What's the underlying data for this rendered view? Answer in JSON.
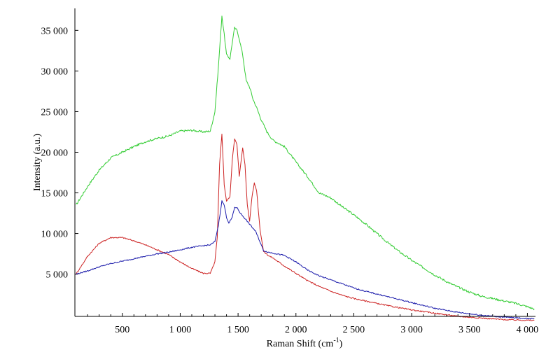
{
  "chart_data": {
    "type": "line",
    "title": "",
    "xlabel": "Raman Shift (cm-1)",
    "xlabel_main": "Raman Shift (cm",
    "xlabel_sup": "-1",
    "xlabel_close": ")",
    "ylabel": "Intensity (a.u.)",
    "xlim": [
      90,
      4070
    ],
    "ylim": [
      -200,
      37700
    ],
    "grid": false,
    "xticks": [
      {
        "value": 500,
        "label": "500"
      },
      {
        "value": 1000,
        "label": "1 000"
      },
      {
        "value": 1500,
        "label": "1 500"
      },
      {
        "value": 2000,
        "label": "2 000"
      },
      {
        "value": 2500,
        "label": "2 500"
      },
      {
        "value": 3000,
        "label": "3 000"
      },
      {
        "value": 3500,
        "label": "3 500"
      },
      {
        "value": 4000,
        "label": "4 000"
      }
    ],
    "yticks": [
      {
        "value": 5000,
        "label": "5 000"
      },
      {
        "value": 10000,
        "label": "10 000"
      },
      {
        "value": 15000,
        "label": "15 000"
      },
      {
        "value": 20000,
        "label": "20 000"
      },
      {
        "value": 25000,
        "label": "25 000"
      },
      {
        "value": 30000,
        "label": "30 000"
      },
      {
        "value": 35000,
        "label": "35 000"
      }
    ],
    "series": [
      {
        "color": "#33cc33",
        "x": [
          100,
          200,
          300,
          400,
          500,
          600,
          700,
          800,
          900,
          1000,
          1100,
          1200,
          1260,
          1300,
          1330,
          1360,
          1380,
          1400,
          1430,
          1450,
          1470,
          1490,
          1510,
          1540,
          1570,
          1600,
          1630,
          1660,
          1700,
          1750,
          1800,
          1900,
          2000,
          2100,
          2200,
          2300,
          2400,
          2500,
          2600,
          2700,
          2800,
          2900,
          3000,
          3100,
          3200,
          3300,
          3400,
          3500,
          3600,
          3700,
          3800,
          3900,
          4000,
          4060
        ],
        "y": [
          13500,
          15800,
          17800,
          19300,
          20000,
          20700,
          21300,
          21700,
          22000,
          22600,
          22700,
          22500,
          22600,
          25000,
          30500,
          36800,
          34500,
          32000,
          31500,
          33500,
          35300,
          35000,
          34000,
          32000,
          28800,
          28000,
          26500,
          25500,
          24000,
          22500,
          21500,
          20700,
          18800,
          17000,
          15000,
          14400,
          13300,
          12300,
          11200,
          10000,
          8800,
          7700,
          6700,
          5800,
          4900,
          4100,
          3400,
          2800,
          2300,
          2000,
          1700,
          1400,
          1000,
          700
        ]
      },
      {
        "color": "#cc2222",
        "x": [
          100,
          200,
          300,
          400,
          500,
          600,
          700,
          800,
          900,
          1000,
          1100,
          1200,
          1260,
          1300,
          1320,
          1340,
          1360,
          1380,
          1400,
          1430,
          1450,
          1470,
          1490,
          1510,
          1540,
          1560,
          1580,
          1600,
          1620,
          1640,
          1660,
          1690,
          1720,
          1760,
          1800,
          1900,
          2000,
          2100,
          2200,
          2300,
          2400,
          2500,
          2600,
          2800,
          3000,
          3200,
          3400,
          3600,
          3800,
          4060
        ],
        "y": [
          5000,
          7200,
          8800,
          9500,
          9500,
          9100,
          8600,
          8000,
          7400,
          6500,
          5700,
          5100,
          5100,
          6500,
          9500,
          18500,
          22300,
          16000,
          14000,
          14500,
          19000,
          21700,
          21000,
          17000,
          20500,
          18500,
          13500,
          11500,
          14500,
          16200,
          15300,
          10500,
          7800,
          7300,
          7000,
          6000,
          5100,
          4200,
          3500,
          2900,
          2400,
          2000,
          1700,
          1100,
          600,
          200,
          -200,
          -400,
          -600,
          -700
        ]
      },
      {
        "color": "#1a1aaa",
        "x": [
          100,
          200,
          300,
          400,
          500,
          600,
          700,
          800,
          900,
          1000,
          1100,
          1200,
          1260,
          1300,
          1330,
          1360,
          1380,
          1400,
          1420,
          1450,
          1470,
          1490,
          1520,
          1550,
          1580,
          1620,
          1650,
          1680,
          1720,
          1760,
          1800,
          1900,
          2000,
          2100,
          2200,
          2300,
          2400,
          2500,
          2600,
          2800,
          3000,
          3200,
          3400,
          3600,
          3800,
          4060
        ],
        "y": [
          5000,
          5400,
          5900,
          6300,
          6600,
          6900,
          7200,
          7500,
          7700,
          8000,
          8300,
          8500,
          8600,
          9000,
          11000,
          14000,
          13500,
          12000,
          11300,
          12000,
          13200,
          13200,
          12500,
          12000,
          11500,
          10800,
          10300,
          9300,
          7900,
          7700,
          7600,
          7300,
          6500,
          5500,
          4800,
          4300,
          3800,
          3300,
          2900,
          2200,
          1500,
          800,
          300,
          -50,
          -300,
          -500
        ]
      }
    ]
  }
}
